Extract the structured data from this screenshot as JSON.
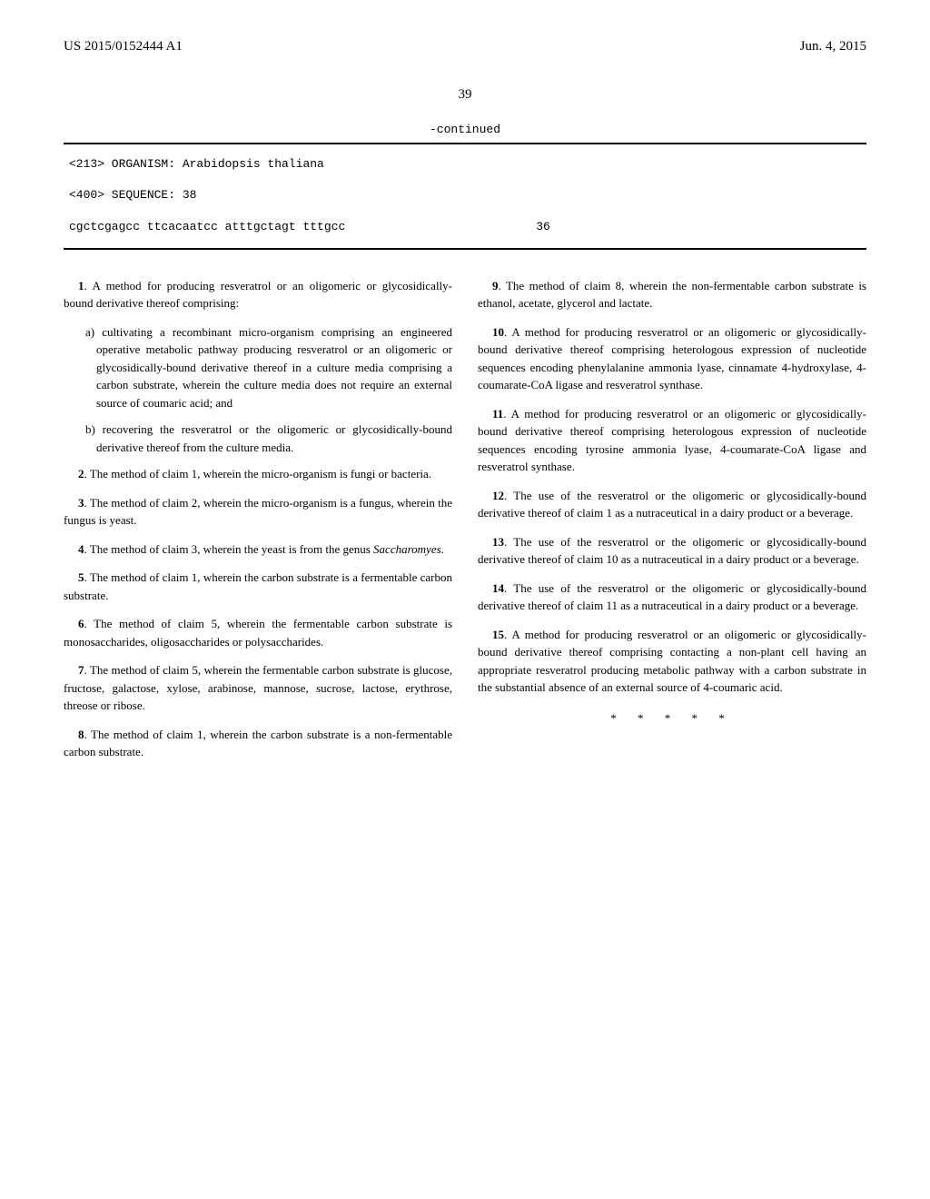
{
  "header": {
    "pub_number": "US 2015/0152444 A1",
    "pub_date": "Jun. 4, 2015"
  },
  "page_number": "39",
  "sequence": {
    "continued": "-continued",
    "organism_line": "<213> ORGANISM: Arabidopsis thaliana",
    "seq_id_line": "<400> SEQUENCE: 38",
    "seq_data": "cgctcgagcc ttcacaatcc atttgctagt tttgcc",
    "seq_len": "36"
  },
  "claims_left": [
    {
      "num": "1",
      "text": ". A method for producing resveratrol or an oligomeric or glycosidically-bound derivative thereof comprising:",
      "subs": [
        "a) cultivating a recombinant micro-organism comprising an engineered operative metabolic pathway producing resveratrol or an oligomeric or glycosidically-bound derivative thereof in a culture media comprising a carbon substrate, wherein the culture media does not require an external source of coumaric acid; and",
        "b) recovering the resveratrol or the oligomeric or glycosidically-bound derivative thereof from the culture media."
      ]
    },
    {
      "num": "2",
      "text": ". The method of claim 1, wherein the micro-organism is fungi or bacteria."
    },
    {
      "num": "3",
      "text": ". The method of claim 2, wherein the micro-organism is a fungus, wherein the fungus is yeast."
    },
    {
      "num": "4",
      "text": ". The method of claim 3, wherein the yeast is from the genus ",
      "italic_tail": "Saccharomyes",
      "post": "."
    },
    {
      "num": "5",
      "text": ". The method of claim 1, wherein the carbon substrate is a fermentable carbon substrate."
    },
    {
      "num": "6",
      "text": ". The method of claim 5, wherein the fermentable carbon substrate is monosaccharides, oligosaccharides or polysaccharides."
    },
    {
      "num": "7",
      "text": ". The method of claim 5, wherein the fermentable carbon substrate is glucose, fructose, galactose, xylose, arabinose, mannose, sucrose, lactose, erythrose, threose or ribose."
    },
    {
      "num": "8",
      "text": ". The method of claim 1, wherein the carbon substrate is a non-fermentable carbon substrate."
    }
  ],
  "claims_right": [
    {
      "num": "9",
      "text": ". The method of claim 8, wherein the non-fermentable carbon substrate is ethanol, acetate, glycerol and lactate."
    },
    {
      "num": "10",
      "text": ". A method for producing resveratrol or an oligomeric or glycosidically-bound derivative thereof comprising heterologous expression of nucleotide sequences encoding phenylalanine ammonia lyase, cinnamate 4-hydroxylase, 4-coumarate-CoA ligase and resveratrol synthase."
    },
    {
      "num": "11",
      "text": ". A method for producing resveratrol or an oligomeric or glycosidically-bound derivative thereof comprising heterologous expression of nucleotide sequences encoding tyrosine ammonia lyase, 4-coumarate-CoA ligase and resveratrol synthase."
    },
    {
      "num": "12",
      "text": ". The use of the resveratrol or the oligomeric or glycosidically-bound derivative thereof of claim 1 as a nutraceutical in a dairy product or a beverage."
    },
    {
      "num": "13",
      "text": ". The use of the resveratrol or the oligomeric or glycosidically-bound derivative thereof of claim 10 as a nutraceutical in a dairy product or a beverage."
    },
    {
      "num": "14",
      "text": ". The use of the resveratrol or the oligomeric or glycosidically-bound derivative thereof of claim 11 as a nutraceutical in a dairy product or a beverage."
    },
    {
      "num": "15",
      "text": ". A method for producing resveratrol or an oligomeric or glycosidically-bound derivative thereof comprising contacting a non-plant cell having an appropriate resveratrol producing metabolic pathway with a carbon substrate in the substantial absence of an external source of 4-coumaric acid."
    }
  ],
  "stars": "*   *   *   *   *"
}
